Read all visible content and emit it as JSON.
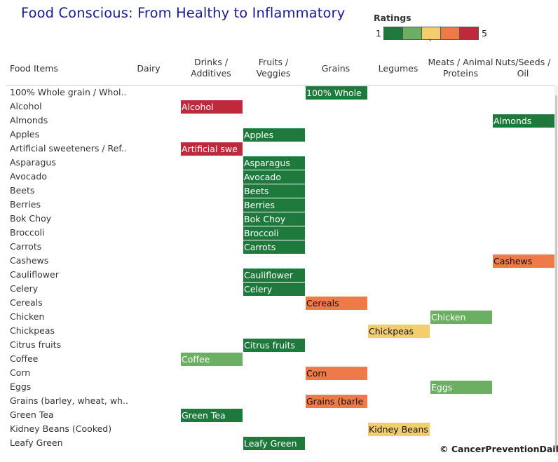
{
  "title": "Food Conscious: From Healthy to Inflammatory",
  "legend": {
    "title": "Ratings",
    "min_label": "1",
    "max_label": "5",
    "colors": [
      "#1e7a3c",
      "#6aaf62",
      "#f2cd6e",
      "#ee7a48",
      "#c0283c"
    ]
  },
  "credit": "© CancerPreventionDaily",
  "chart_data": {
    "type": "heatmap",
    "title": "Food Conscious: From Healthy to Inflammatory",
    "row_header": "Food Items",
    "columns": [
      "Dairy",
      "Drinks /\nAdditives",
      "Fruits /\nVeggies",
      "Grains",
      "Legumes",
      "Meats / Animal\nProteins",
      "Nuts/Seeds /\nOil"
    ],
    "rows": [
      "100% Whole grain / Whol..",
      "Alcohol",
      "Almonds",
      "Apples",
      "Artificial sweeteners / Ref..",
      "Asparagus",
      "Avocado",
      "Beets",
      "Berries",
      "Bok Choy",
      "Broccoli",
      "Carrots",
      "Cashews",
      "Cauliflower",
      "Celery",
      "Cereals",
      "Chicken",
      "Chickpeas",
      "Citrus fruits",
      "Coffee",
      "Corn",
      "Eggs",
      "Grains (barley, wheat, wh..",
      "Green Tea",
      "Kidney Beans (Cooked)",
      "Leafy Green"
    ],
    "color_scale": {
      "min": 1,
      "max": 5,
      "legend": "Ratings"
    },
    "cells": [
      {
        "row": 0,
        "col": 3,
        "label": "100% Whole",
        "rating": 1
      },
      {
        "row": 1,
        "col": 1,
        "label": "Alcohol",
        "rating": 5
      },
      {
        "row": 2,
        "col": 6,
        "label": "Almonds",
        "rating": 1
      },
      {
        "row": 3,
        "col": 2,
        "label": "Apples",
        "rating": 1
      },
      {
        "row": 4,
        "col": 1,
        "label": "Artificial swe",
        "rating": 5
      },
      {
        "row": 5,
        "col": 2,
        "label": "Asparagus",
        "rating": 1
      },
      {
        "row": 6,
        "col": 2,
        "label": "Avocado",
        "rating": 1
      },
      {
        "row": 7,
        "col": 2,
        "label": "Beets",
        "rating": 1
      },
      {
        "row": 8,
        "col": 2,
        "label": "Berries",
        "rating": 1
      },
      {
        "row": 9,
        "col": 2,
        "label": "Bok Choy",
        "rating": 1
      },
      {
        "row": 10,
        "col": 2,
        "label": "Broccoli",
        "rating": 1
      },
      {
        "row": 11,
        "col": 2,
        "label": "Carrots",
        "rating": 1
      },
      {
        "row": 12,
        "col": 6,
        "label": "Cashews",
        "rating": 4
      },
      {
        "row": 13,
        "col": 2,
        "label": "Cauliflower",
        "rating": 1
      },
      {
        "row": 14,
        "col": 2,
        "label": "Celery",
        "rating": 1
      },
      {
        "row": 15,
        "col": 3,
        "label": "Cereals",
        "rating": 4
      },
      {
        "row": 16,
        "col": 5,
        "label": "Chicken",
        "rating": 2
      },
      {
        "row": 17,
        "col": 4,
        "label": "Chickpeas",
        "rating": 3
      },
      {
        "row": 18,
        "col": 2,
        "label": "Citrus fruits",
        "rating": 1
      },
      {
        "row": 19,
        "col": 1,
        "label": "Coffee",
        "rating": 2
      },
      {
        "row": 20,
        "col": 3,
        "label": "Corn",
        "rating": 4
      },
      {
        "row": 21,
        "col": 5,
        "label": "Eggs",
        "rating": 2
      },
      {
        "row": 22,
        "col": 3,
        "label": "Grains (barle",
        "rating": 4
      },
      {
        "row": 23,
        "col": 1,
        "label": "Green Tea",
        "rating": 1
      },
      {
        "row": 24,
        "col": 4,
        "label": "Kidney Beans",
        "rating": 3
      },
      {
        "row": 25,
        "col": 2,
        "label": "Leafy Green",
        "rating": 1
      }
    ],
    "grid": false,
    "legend_placement": "top-right"
  }
}
